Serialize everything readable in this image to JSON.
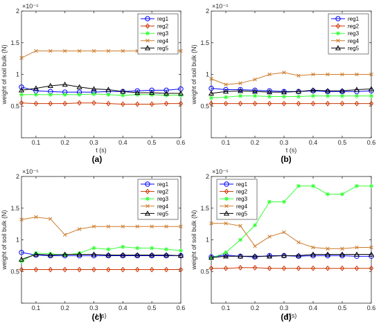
{
  "series_colors": [
    "#0000ff",
    "#cc3300",
    "#33ff33",
    "#cc7a29",
    "#000000"
  ],
  "chart_data": [
    {
      "type": "line",
      "caption": "(a)",
      "xlabel": "t (s)",
      "ylabel": "weight of soil bulk (N)",
      "yexp": "×10⁻⁵",
      "xlim": [
        0.05,
        0.6
      ],
      "ylim": [
        0,
        2
      ],
      "xticks": [
        0.1,
        0.2,
        0.3,
        0.4,
        0.5,
        0.6
      ],
      "xtick_labels": [
        "0.1",
        "0.2",
        "0.3",
        "0.4",
        "0.5",
        "0.6"
      ],
      "yticks": [
        0,
        0.5,
        1,
        1.5,
        2
      ],
      "ytick_labels": [
        "",
        "0.5",
        "1",
        "1.5",
        "2"
      ],
      "legend": "top-right",
      "x": [
        0.05,
        0.1,
        0.15,
        0.2,
        0.25,
        0.3,
        0.35,
        0.4,
        0.45,
        0.5,
        0.55,
        0.6
      ],
      "series": [
        {
          "name": "reg1",
          "marker": "circle",
          "values": [
            0.8,
            0.74,
            0.73,
            0.72,
            0.72,
            0.72,
            0.73,
            0.73,
            0.74,
            0.75,
            0.75,
            0.77
          ]
        },
        {
          "name": "reg2",
          "marker": "diamond",
          "values": [
            0.55,
            0.54,
            0.54,
            0.54,
            0.55,
            0.55,
            0.54,
            0.53,
            0.53,
            0.53,
            0.54,
            0.54
          ]
        },
        {
          "name": "reg3",
          "marker": "star",
          "values": [
            0.68,
            0.68,
            0.68,
            0.68,
            0.68,
            0.69,
            0.68,
            0.67,
            0.68,
            0.68,
            0.67,
            0.67
          ]
        },
        {
          "name": "reg4",
          "marker": "x",
          "values": [
            1.26,
            1.37,
            1.37,
            1.37,
            1.37,
            1.37,
            1.37,
            1.37,
            1.37,
            1.37,
            1.37,
            1.37
          ]
        },
        {
          "name": "reg5",
          "marker": "triangle",
          "values": [
            0.75,
            0.78,
            0.82,
            0.84,
            0.8,
            0.77,
            0.76,
            0.73,
            0.71,
            0.71,
            0.7,
            0.7
          ]
        }
      ]
    },
    {
      "type": "line",
      "caption": "(b)",
      "xlabel": "t (s)",
      "ylabel": "weight of soil bulk (N)",
      "yexp": "×10⁻⁵",
      "xlim": [
        0.05,
        0.6
      ],
      "ylim": [
        0,
        2
      ],
      "xticks": [
        0.1,
        0.2,
        0.3,
        0.4,
        0.5,
        0.6
      ],
      "xtick_labels": [
        "0.1",
        "0.2",
        "0.3",
        "0.4",
        "0.5",
        "0.6"
      ],
      "yticks": [
        0,
        0.5,
        1,
        1.5,
        2
      ],
      "ytick_labels": [
        "",
        "0.5",
        "1",
        "1.5",
        "2"
      ],
      "legend": "top-right",
      "x": [
        0.05,
        0.1,
        0.15,
        0.2,
        0.25,
        0.3,
        0.35,
        0.4,
        0.45,
        0.5,
        0.55,
        0.6
      ],
      "series": [
        {
          "name": "reg1",
          "marker": "circle",
          "values": [
            0.78,
            0.76,
            0.76,
            0.75,
            0.74,
            0.73,
            0.73,
            0.74,
            0.73,
            0.73,
            0.73,
            0.74
          ]
        },
        {
          "name": "reg2",
          "marker": "diamond",
          "values": [
            0.54,
            0.54,
            0.54,
            0.54,
            0.54,
            0.54,
            0.54,
            0.54,
            0.54,
            0.54,
            0.54,
            0.54
          ]
        },
        {
          "name": "reg3",
          "marker": "star",
          "values": [
            0.63,
            0.64,
            0.66,
            0.66,
            0.65,
            0.65,
            0.65,
            0.66,
            0.66,
            0.66,
            0.66,
            0.66
          ]
        },
        {
          "name": "reg4",
          "marker": "x",
          "values": [
            0.93,
            0.84,
            0.86,
            0.92,
            1.0,
            1.03,
            0.98,
            1.0,
            1.0,
            1.0,
            1.0,
            1.0
          ]
        },
        {
          "name": "reg5",
          "marker": "triangle",
          "values": [
            0.7,
            0.73,
            0.74,
            0.73,
            0.72,
            0.72,
            0.73,
            0.75,
            0.74,
            0.74,
            0.76,
            0.77
          ]
        }
      ]
    },
    {
      "type": "line",
      "caption": "(c)",
      "xlabel": "t (s)",
      "ylabel": "weight of soil bulk (N)",
      "yexp": "×10⁻⁵",
      "xlim": [
        0.05,
        0.6
      ],
      "ylim": [
        0,
        2
      ],
      "xticks": [
        0.1,
        0.2,
        0.3,
        0.4,
        0.5,
        0.6
      ],
      "xtick_labels": [
        "0.1",
        "0.2",
        "0.3",
        "0.4",
        "0.5",
        "0.6"
      ],
      "yticks": [
        0,
        0.5,
        1,
        1.5,
        2
      ],
      "ytick_labels": [
        "",
        "0.5",
        "1",
        "1.5",
        "2"
      ],
      "legend": "top-right",
      "x": [
        0.05,
        0.1,
        0.15,
        0.2,
        0.25,
        0.3,
        0.35,
        0.4,
        0.45,
        0.5,
        0.55,
        0.6
      ],
      "series": [
        {
          "name": "reg1",
          "marker": "circle",
          "values": [
            0.8,
            0.76,
            0.75,
            0.75,
            0.75,
            0.75,
            0.75,
            0.75,
            0.75,
            0.75,
            0.75,
            0.75
          ]
        },
        {
          "name": "reg2",
          "marker": "diamond",
          "values": [
            0.53,
            0.53,
            0.53,
            0.53,
            0.53,
            0.53,
            0.53,
            0.53,
            0.53,
            0.53,
            0.53,
            0.53
          ]
        },
        {
          "name": "reg3",
          "marker": "star",
          "values": [
            0.66,
            0.79,
            0.78,
            0.76,
            0.79,
            0.87,
            0.85,
            0.89,
            0.87,
            0.87,
            0.85,
            0.83
          ]
        },
        {
          "name": "reg4",
          "marker": "x",
          "values": [
            1.32,
            1.36,
            1.33,
            1.08,
            1.17,
            1.21,
            1.21,
            1.21,
            1.21,
            1.21,
            1.21,
            1.21
          ]
        },
        {
          "name": "reg5",
          "marker": "triangle",
          "values": [
            0.69,
            0.77,
            0.76,
            0.77,
            0.77,
            0.77,
            0.76,
            0.76,
            0.76,
            0.76,
            0.76,
            0.75
          ]
        }
      ]
    },
    {
      "type": "line",
      "caption": "(d)",
      "xlabel": "t (s)",
      "ylabel": "weight of soil bulk (N)",
      "yexp": "×10⁻⁵",
      "xlim": [
        0.05,
        0.6
      ],
      "ylim": [
        0,
        2
      ],
      "xticks": [
        0.1,
        0.2,
        0.3,
        0.4,
        0.5,
        0.6
      ],
      "xtick_labels": [
        "0.1",
        "0.2",
        "0.3",
        "0.4",
        "0.5",
        "0.6"
      ],
      "yticks": [
        0,
        0.5,
        1,
        1.5,
        2
      ],
      "ytick_labels": [
        "",
        "0.5",
        "1",
        "1.5",
        "2"
      ],
      "legend": "top-left",
      "x": [
        0.05,
        0.1,
        0.15,
        0.2,
        0.25,
        0.3,
        0.35,
        0.4,
        0.45,
        0.5,
        0.55,
        0.6
      ],
      "series": [
        {
          "name": "reg1",
          "marker": "circle",
          "values": [
            0.73,
            0.76,
            0.74,
            0.73,
            0.75,
            0.75,
            0.74,
            0.75,
            0.75,
            0.75,
            0.74,
            0.74
          ]
        },
        {
          "name": "reg2",
          "marker": "diamond",
          "values": [
            0.55,
            0.55,
            0.56,
            0.56,
            0.55,
            0.55,
            0.55,
            0.55,
            0.55,
            0.55,
            0.55,
            0.55
          ]
        },
        {
          "name": "reg3",
          "marker": "star",
          "values": [
            0.71,
            0.8,
            1.0,
            1.23,
            1.6,
            1.6,
            1.85,
            1.85,
            1.72,
            1.72,
            1.85,
            1.85
          ]
        },
        {
          "name": "reg4",
          "marker": "x",
          "values": [
            1.26,
            1.26,
            1.22,
            0.9,
            1.05,
            1.12,
            0.96,
            0.88,
            0.86,
            0.86,
            0.88,
            0.88
          ]
        },
        {
          "name": "reg5",
          "marker": "triangle",
          "values": [
            0.72,
            0.74,
            0.74,
            0.74,
            0.74,
            0.75,
            0.75,
            0.77,
            0.77,
            0.77,
            0.77,
            0.77
          ]
        }
      ]
    }
  ]
}
